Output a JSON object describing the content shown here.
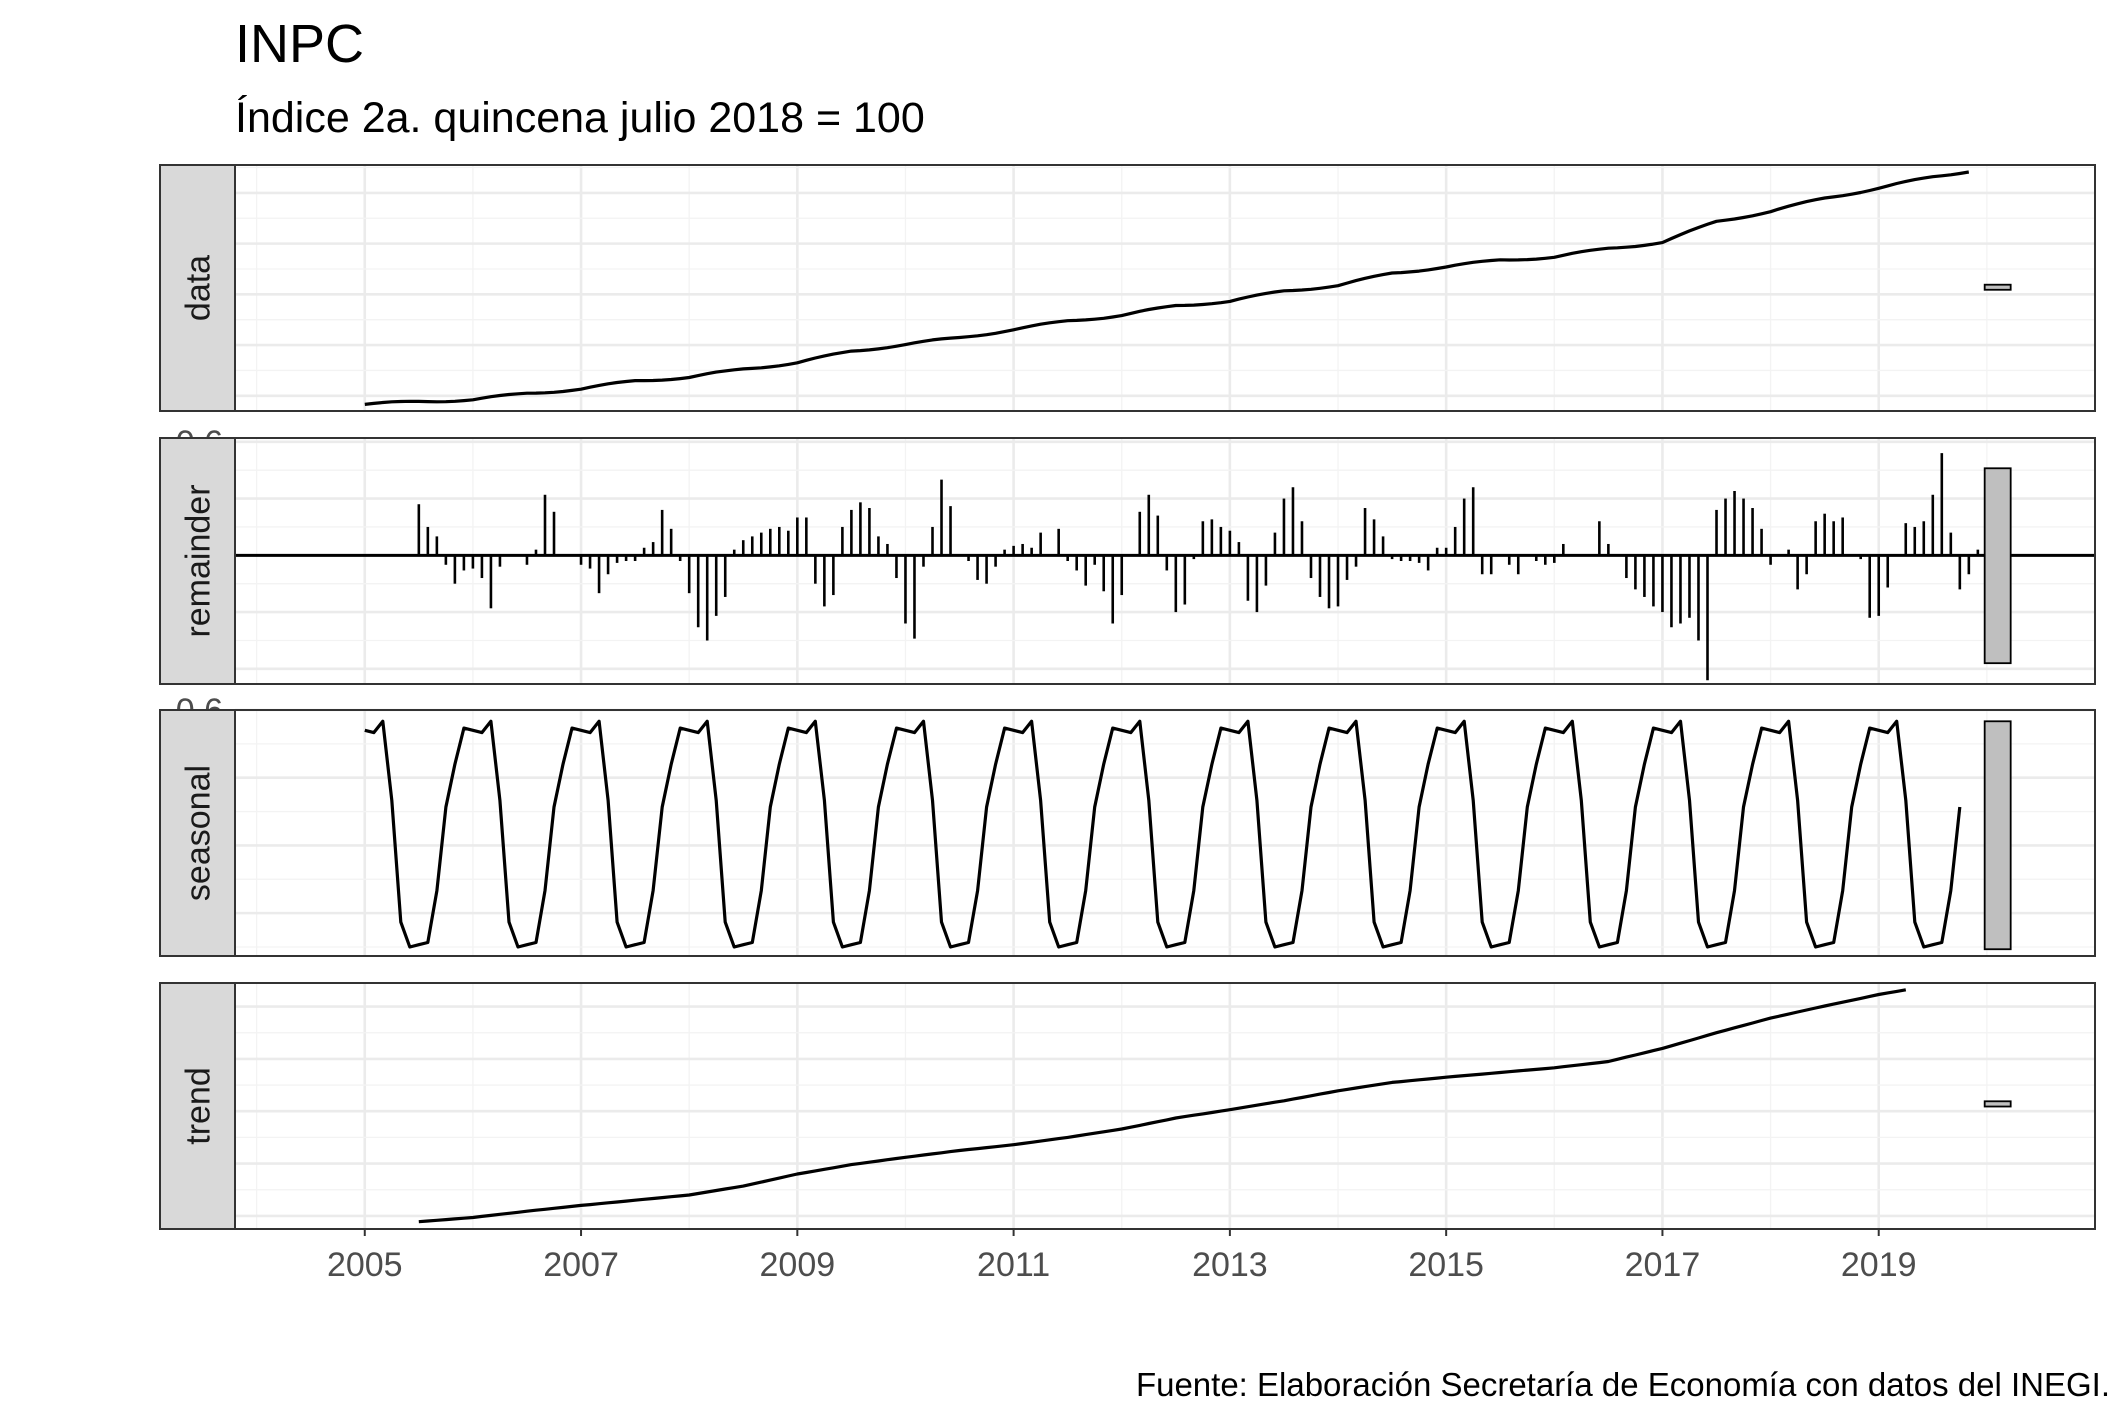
{
  "title": "INPC",
  "subtitle": "Índice 2a. quincena julio 2018 = 100",
  "caption": "Fuente: Elaboración Secretaría de Economía con datos del INEGI.",
  "chart_data": {
    "type": "line",
    "x_ticks": [
      "2005",
      "2007",
      "2009",
      "2011",
      "2013",
      "2015",
      "2017",
      "2019"
    ],
    "x_range": [
      2003.8,
      2021.0
    ],
    "start_year": 2005,
    "frequency": 12,
    "grid": true,
    "panels": [
      {
        "name": "data",
        "type": "line",
        "yticks": [
          "60",
          "70",
          "80",
          "90",
          "100"
        ],
        "ylim": [
          57.0,
          105.5
        ],
        "scale_range": [
          80.9,
          81.9
        ],
        "series_knots": [
          [
            2005.0,
            58.3
          ],
          [
            2005.5,
            58.9
          ],
          [
            2006.0,
            59.2
          ],
          [
            2006.5,
            60.5
          ],
          [
            2007.0,
            61.3
          ],
          [
            2007.5,
            63.0
          ],
          [
            2008.0,
            63.6
          ],
          [
            2008.5,
            65.3
          ],
          [
            2009.0,
            66.5
          ],
          [
            2009.5,
            68.8
          ],
          [
            2010.0,
            70.1
          ],
          [
            2010.5,
            71.5
          ],
          [
            2011.0,
            73.0
          ],
          [
            2011.5,
            74.8
          ],
          [
            2012.0,
            75.8
          ],
          [
            2012.5,
            77.8
          ],
          [
            2013.0,
            78.6
          ],
          [
            2013.5,
            80.7
          ],
          [
            2014.0,
            81.7
          ],
          [
            2014.5,
            84.2
          ],
          [
            2015.0,
            85.4
          ],
          [
            2015.5,
            86.8
          ],
          [
            2016.0,
            87.3
          ],
          [
            2016.5,
            89.1
          ],
          [
            2017.0,
            90.2
          ],
          [
            2017.5,
            94.4
          ],
          [
            2018.0,
            96.3
          ],
          [
            2018.5,
            99.0
          ],
          [
            2019.0,
            100.9
          ],
          [
            2019.5,
            103.2
          ],
          [
            2019.83,
            104.3
          ]
        ]
      },
      {
        "name": "remainder",
        "type": "bar",
        "yticks": [
          "-0.6",
          "-0.3",
          "0.0",
          "0.3",
          "0.6"
        ],
        "ylim": [
          -0.68,
          0.62
        ],
        "scale_range": [
          -0.57,
          0.46
        ],
        "values": [
          0.27,
          0.15,
          0.1,
          -0.05,
          -0.15,
          -0.08,
          -0.07,
          -0.12,
          -0.28,
          -0.06,
          0.0,
          0.0,
          -0.05,
          0.03,
          0.32,
          0.23,
          0.0,
          0.0,
          -0.05,
          -0.07,
          -0.2,
          -0.1,
          -0.04,
          -0.03,
          -0.03,
          0.04,
          0.07,
          0.24,
          0.14,
          -0.03,
          -0.2,
          -0.38,
          -0.45,
          -0.32,
          -0.22,
          0.03,
          0.08,
          0.1,
          0.12,
          0.14,
          0.15,
          0.13,
          0.2,
          0.2,
          -0.15,
          -0.27,
          -0.21,
          0.15,
          0.24,
          0.28,
          0.25,
          0.1,
          0.06,
          -0.12,
          -0.36,
          -0.44,
          -0.06,
          0.15,
          0.4,
          0.26,
          0.0,
          -0.03,
          -0.13,
          -0.15,
          -0.06,
          0.03,
          0.05,
          0.06,
          0.04,
          0.12,
          0.0,
          0.14,
          -0.03,
          -0.08,
          -0.16,
          -0.05,
          -0.19,
          -0.36,
          -0.21,
          0.0,
          0.23,
          0.32,
          0.21,
          -0.08,
          -0.3,
          -0.26,
          -0.02,
          0.18,
          0.19,
          0.15,
          0.13,
          0.07,
          -0.24,
          -0.3,
          -0.16,
          0.12,
          0.3,
          0.36,
          0.18,
          -0.12,
          -0.22,
          -0.28,
          -0.27,
          -0.13,
          -0.06,
          0.25,
          0.19,
          0.1,
          -0.02,
          -0.03,
          -0.03,
          -0.04,
          -0.08,
          0.04,
          0.04,
          0.15,
          0.3,
          0.36,
          -0.1,
          -0.1,
          0.0,
          -0.05,
          -0.1,
          0.0,
          -0.03,
          -0.05,
          -0.04,
          0.06,
          0.0,
          0.0,
          0.0,
          0.18,
          0.06,
          0.0,
          -0.12,
          -0.18,
          -0.22,
          -0.27,
          -0.3,
          -0.38,
          -0.36,
          -0.33,
          -0.45,
          -0.66,
          0.24,
          0.3,
          0.34,
          0.3,
          0.25,
          0.14,
          -0.05,
          0.0,
          0.03,
          -0.18,
          -0.1,
          0.18,
          0.22,
          0.18,
          0.2,
          0.0,
          -0.02,
          -0.33,
          -0.32,
          -0.17,
          0.0,
          0.17,
          0.15,
          0.18,
          0.32,
          0.54,
          0.12,
          -0.18,
          -0.1,
          0.03
        ]
      },
      {
        "name": "seasonal",
        "type": "line",
        "yticks": [
          "-0.3",
          "0.0",
          "0.3",
          "0.6"
        ],
        "ylim": [
          -0.49,
          0.6
        ],
        "scale_range": [
          -0.46,
          0.55
        ],
        "pattern": [
          0.51,
          0.5,
          0.55,
          0.2,
          -0.34,
          -0.45,
          -0.44,
          -0.43,
          -0.2,
          0.17,
          0.36,
          0.52
        ],
        "values_count": 178
      },
      {
        "name": "trend",
        "type": "line",
        "yticks": [
          "60",
          "70",
          "80",
          "90",
          "100"
        ],
        "ylim": [
          57.5,
          104.5
        ],
        "scale_range": [
          80.9,
          81.9
        ],
        "series_knots": [
          [
            2005.5,
            58.9
          ],
          [
            2006.0,
            59.7
          ],
          [
            2006.5,
            60.9
          ],
          [
            2007.0,
            62.0
          ],
          [
            2007.5,
            63.0
          ],
          [
            2008.0,
            64.0
          ],
          [
            2008.5,
            65.7
          ],
          [
            2009.0,
            68.0
          ],
          [
            2009.5,
            69.8
          ],
          [
            2010.0,
            71.2
          ],
          [
            2010.5,
            72.5
          ],
          [
            2011.0,
            73.6
          ],
          [
            2011.5,
            75.0
          ],
          [
            2012.0,
            76.6
          ],
          [
            2012.5,
            78.7
          ],
          [
            2013.0,
            80.3
          ],
          [
            2013.5,
            82.0
          ],
          [
            2014.0,
            83.9
          ],
          [
            2014.5,
            85.5
          ],
          [
            2015.0,
            86.5
          ],
          [
            2015.5,
            87.4
          ],
          [
            2016.0,
            88.3
          ],
          [
            2016.5,
            89.5
          ],
          [
            2017.0,
            92.0
          ],
          [
            2017.5,
            95.0
          ],
          [
            2018.0,
            97.8
          ],
          [
            2018.5,
            100.1
          ],
          [
            2019.0,
            102.3
          ],
          [
            2019.25,
            103.2
          ]
        ]
      }
    ]
  }
}
